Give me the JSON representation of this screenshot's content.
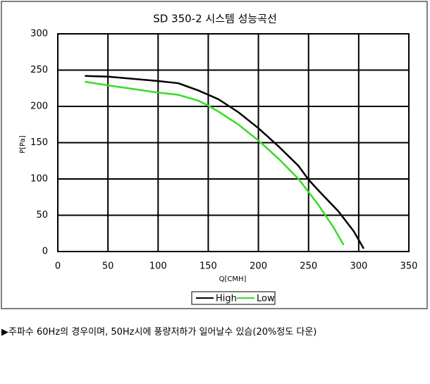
{
  "chart_data": {
    "type": "line",
    "title": "SD 350-2 시스템 성능곡선",
    "x_label": "Q[CMH]",
    "y_label": "P[Pa]",
    "xlim": [
      0,
      350
    ],
    "xticks": [
      0,
      50,
      100,
      150,
      200,
      250,
      300,
      350
    ],
    "ylim": [
      0,
      300
    ],
    "yticks": [
      0,
      50,
      100,
      150,
      200,
      250,
      300
    ],
    "grid": true,
    "legend": "bottom",
    "series": [
      {
        "name": "High",
        "color": "#000000",
        "x": [
          27,
          50,
          75,
          100,
          120,
          140,
          160,
          180,
          200,
          220,
          240,
          250,
          260,
          280,
          295,
          305
        ],
        "values": [
          242,
          241,
          238,
          235,
          232,
          222,
          210,
          192,
          170,
          145,
          118,
          99,
          84,
          55,
          28,
          4
        ]
      },
      {
        "name": "Low",
        "color": "#33dd22",
        "x": [
          27,
          50,
          75,
          100,
          120,
          140,
          150,
          160,
          180,
          200,
          220,
          240,
          250,
          260,
          275,
          285
        ],
        "values": [
          234,
          229,
          224,
          219,
          216,
          208,
          201,
          193,
          175,
          153,
          128,
          100,
          82,
          64,
          33,
          9
        ]
      }
    ]
  },
  "note": "▶주파수 60Hz의 경우이며, 50Hz시에 풍량저하가 일어날수 있슴(20%정도 다운)"
}
